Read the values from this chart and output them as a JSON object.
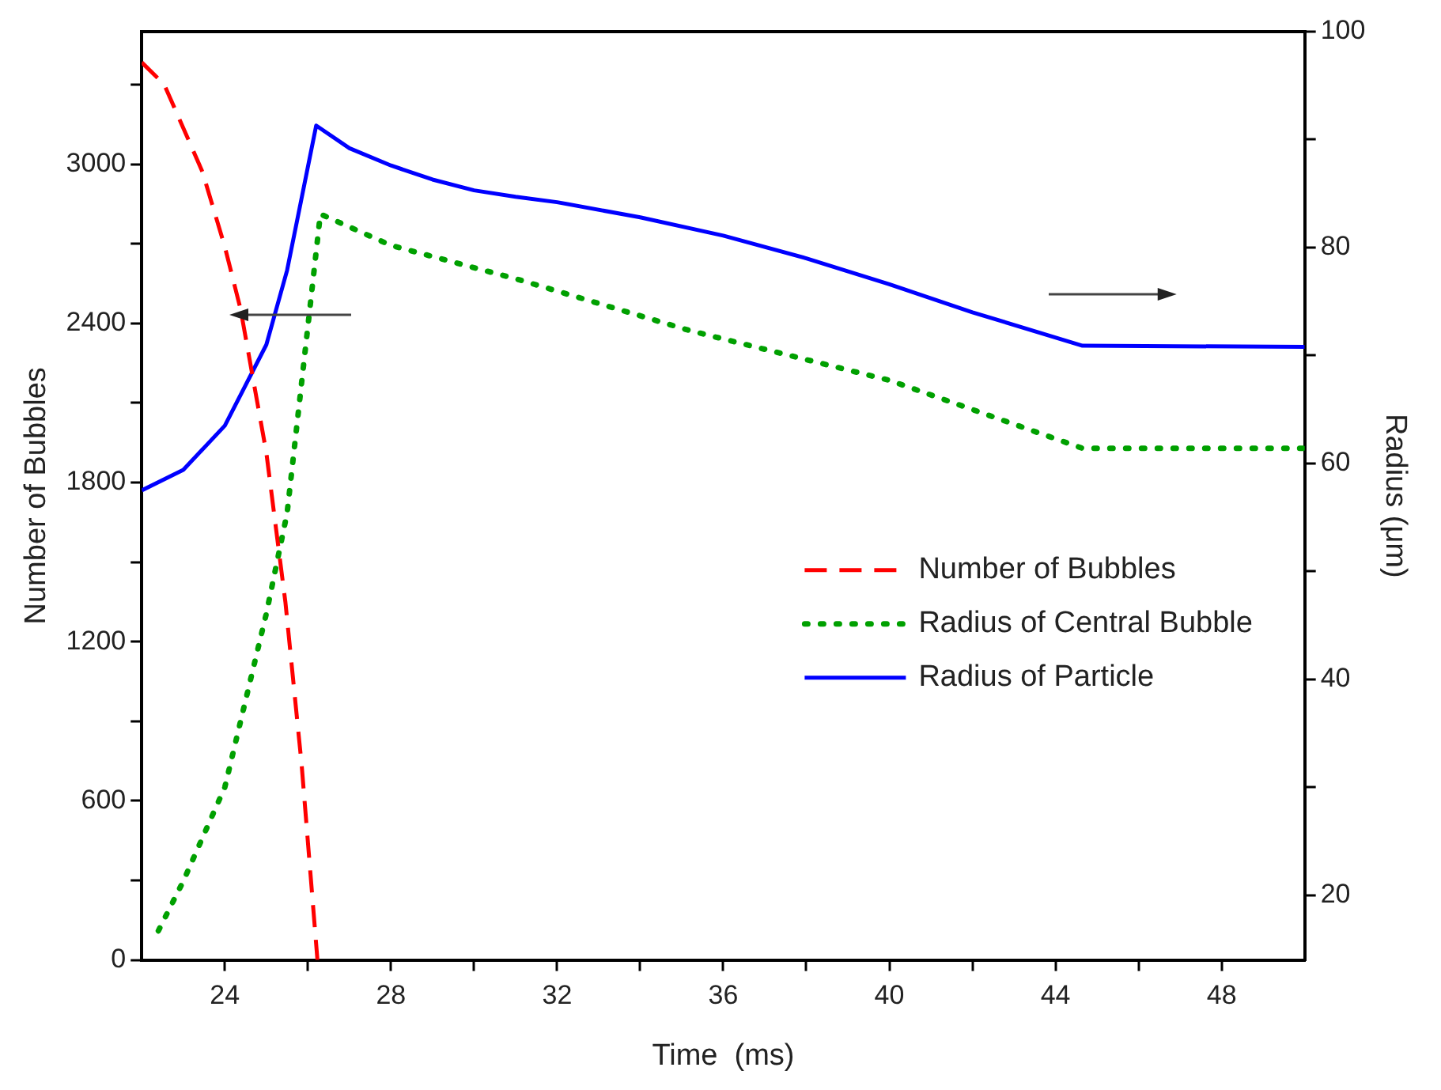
{
  "chart_data": {
    "type": "line",
    "xlabel": "Time  (ms)",
    "ylabel": "Number of Bubbles",
    "y2label": "Radius (μm)",
    "xlim": [
      22,
      50
    ],
    "xticks": [
      24,
      {
        "value": 26,
        "label": null
      },
      28,
      {
        "value": 30,
        "label": null
      },
      32,
      {
        "value": 34,
        "label": null
      },
      36,
      {
        "value": 38,
        "label": null
      },
      40,
      {
        "value": 42,
        "label": null
      },
      44,
      {
        "value": 46,
        "label": null
      },
      48
    ],
    "ylim": [
      0,
      3500
    ],
    "yticks": [
      0,
      {
        "value": 300,
        "label": null
      },
      600,
      {
        "value": 900,
        "label": null
      },
      1200,
      {
        "value": 1500,
        "label": null
      },
      1800,
      {
        "value": 2100,
        "label": null
      },
      2400,
      {
        "value": 2700,
        "label": null
      },
      3000,
      {
        "value": 3300,
        "label": null
      }
    ],
    "y2lim": [
      14,
      100
    ],
    "y2ticks": [
      20,
      {
        "value": 30,
        "label": null
      },
      40,
      {
        "value": 50,
        "label": null
      },
      60,
      {
        "value": 70,
        "label": null
      },
      80,
      {
        "value": 90,
        "label": null
      },
      100
    ],
    "grid": false,
    "legend": "bottom right",
    "marker": "none",
    "series": [
      {
        "name": "Number of Bubbles",
        "color": "#ff0000",
        "line_style": "dashed",
        "x": [
          22,
          22.54,
          23.46,
          24,
          24.38,
          25,
          25.46,
          25.85,
          26.23
        ],
        "values": [
          3384,
          3301,
          2972,
          2689,
          2453,
          1912,
          1347,
          735,
          0
        ]
      },
      {
        "name": "Radius of Central Bubble",
        "color": "#00a000",
        "line_style": "dotted",
        "axis": "y2",
        "x": [
          22.4,
          23,
          24,
          25,
          25.5,
          26,
          26.3,
          28,
          31.1,
          35.2,
          40,
          44.65,
          50
        ],
        "values": [
          16.7,
          21.3,
          30,
          46.1,
          55.4,
          72.7,
          83.1,
          80.2,
          77,
          72.3,
          67.7,
          61.4,
          61.4
        ]
      },
      {
        "name": "Radius of Particle",
        "color": "#0000ff",
        "line_style": "solid",
        "axis": "y2",
        "x": [
          22,
          23,
          24,
          25,
          25.5,
          26.2,
          27,
          28,
          29,
          30,
          31,
          32,
          34,
          36,
          38,
          40,
          42,
          44.65,
          50
        ],
        "values": [
          57.5,
          59.4,
          63.5,
          71,
          77.9,
          91.3,
          89.2,
          87.6,
          86.3,
          85.3,
          84.7,
          84.2,
          82.8,
          81.1,
          79,
          76.6,
          74,
          70.9,
          70.8
        ]
      }
    ]
  }
}
